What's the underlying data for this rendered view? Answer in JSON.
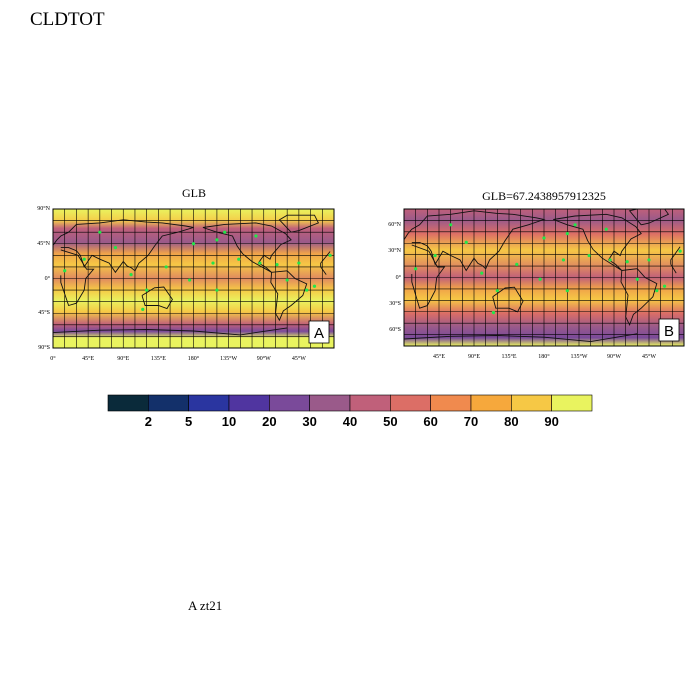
{
  "title": "CLDTOT",
  "bottom_label": "A  zt21",
  "panels": [
    {
      "id": "A",
      "title": "GLB",
      "corner_label": "A",
      "lat_ticks": [
        "90°N",
        "45°N",
        "0°",
        "45°S",
        "90°S"
      ],
      "lon_ticks": [
        "0°",
        "45°E",
        "90°E",
        "135°E",
        "180°",
        "135°W",
        "90°W",
        "45°W"
      ]
    },
    {
      "id": "B",
      "title": "GLB=67.2438957912325",
      "corner_label": "B",
      "lat_ticks": [
        "60°N",
        "30°N",
        "0°",
        "30°S",
        "60°S"
      ],
      "lon_ticks": [
        "45°E",
        "90°E",
        "135°E",
        "180°",
        "135°W",
        "90°W",
        "45°W"
      ]
    }
  ],
  "colorbar": {
    "labels": [
      "2",
      "5",
      "10",
      "20",
      "30",
      "40",
      "50",
      "60",
      "70",
      "80",
      "90"
    ],
    "colors": [
      "#0a2a3a",
      "#13306a",
      "#2a35a0",
      "#5035a0",
      "#7a4a9a",
      "#9a5a8a",
      "#c0607a",
      "#dc6e66",
      "#f08a4e",
      "#f6a83c",
      "#f6c845",
      "#e9f35f"
    ]
  },
  "colors": {
    "land_outline": "#111111",
    "grid": "#000000",
    "station_marker": "#22e64a"
  }
}
